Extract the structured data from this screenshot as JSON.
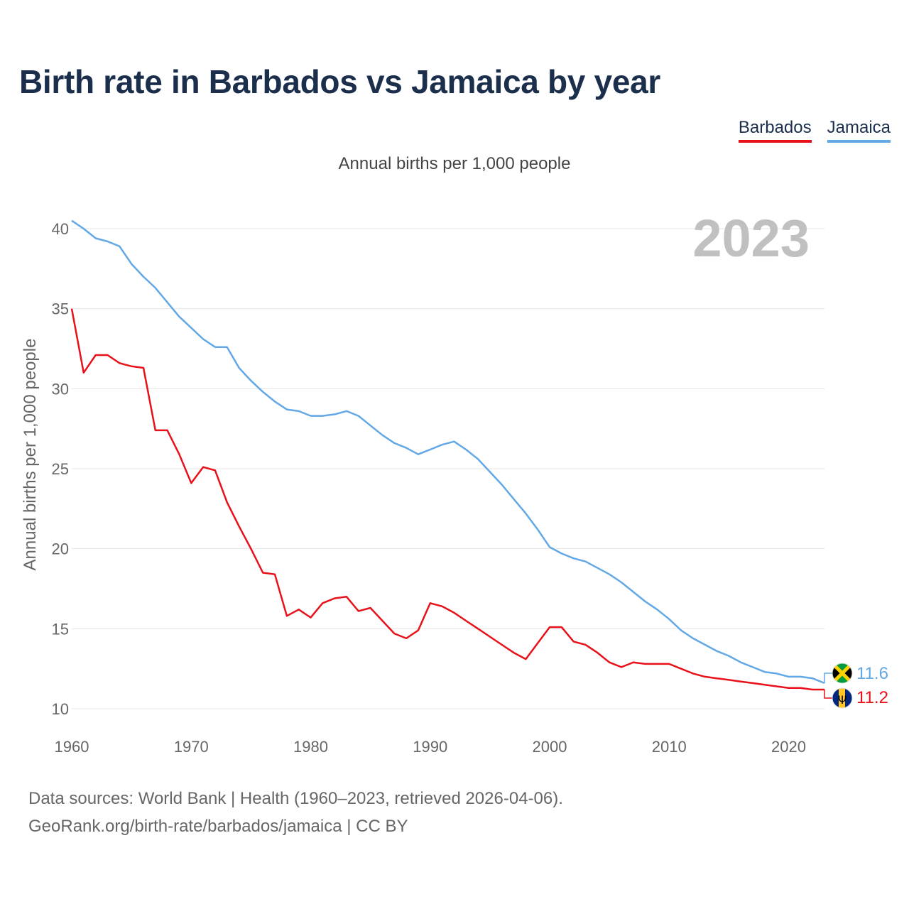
{
  "title": "Birth rate in Barbados vs Jamaica by year",
  "footer": {
    "line1": "Data sources: World Bank | Health (1960–2023, retrieved 2026-04-06).",
    "line2": "GeoRank.org/birth-rate/barbados/jamaica | CC BY"
  },
  "chart_data": {
    "type": "line",
    "title": "Birth rate in Barbados vs Jamaica by year",
    "subtitle": "Annual births per 1,000 people",
    "ylabel": "Annual births per 1,000 people",
    "xlabel": "",
    "xlim": [
      1960,
      2023
    ],
    "ylim": [
      10,
      41
    ],
    "yticks": [
      10,
      15,
      20,
      25,
      30,
      35,
      40
    ],
    "xticks": [
      1960,
      1970,
      1980,
      1990,
      2000,
      2010,
      2020
    ],
    "grid": true,
    "legend_position": "top-right",
    "year_label": "2023",
    "x": [
      1960,
      1961,
      1962,
      1963,
      1964,
      1965,
      1966,
      1967,
      1968,
      1969,
      1970,
      1971,
      1972,
      1973,
      1974,
      1975,
      1976,
      1977,
      1978,
      1979,
      1980,
      1981,
      1982,
      1983,
      1984,
      1985,
      1986,
      1987,
      1988,
      1989,
      1990,
      1991,
      1992,
      1993,
      1994,
      1995,
      1996,
      1997,
      1998,
      1999,
      2000,
      2001,
      2002,
      2003,
      2004,
      2005,
      2006,
      2007,
      2008,
      2009,
      2010,
      2011,
      2012,
      2013,
      2014,
      2015,
      2016,
      2017,
      2018,
      2019,
      2020,
      2021,
      2022,
      2023
    ],
    "series": [
      {
        "name": "Barbados",
        "color": "#e8111a",
        "end_label": "11.2",
        "values": [
          35.0,
          31.0,
          32.1,
          32.1,
          31.6,
          31.4,
          31.3,
          27.4,
          27.4,
          25.9,
          24.1,
          25.1,
          24.9,
          22.9,
          21.4,
          20.0,
          18.5,
          18.4,
          15.8,
          16.2,
          15.7,
          16.6,
          16.9,
          17.0,
          16.1,
          16.3,
          15.5,
          14.7,
          14.4,
          14.9,
          16.6,
          16.4,
          16.0,
          15.5,
          15.0,
          14.5,
          14.0,
          13.5,
          13.1,
          14.1,
          15.1,
          15.1,
          14.2,
          14.0,
          13.5,
          12.9,
          12.6,
          12.9,
          12.8,
          12.8,
          12.8,
          12.5,
          12.2,
          12.0,
          11.9,
          11.8,
          11.7,
          11.6,
          11.5,
          11.4,
          11.3,
          11.3,
          11.2,
          11.2
        ]
      },
      {
        "name": "Jamaica",
        "color": "#62a8e5",
        "end_label": "11.6",
        "values": [
          40.5,
          40.0,
          39.4,
          39.2,
          38.9,
          37.8,
          37.0,
          36.3,
          35.4,
          34.5,
          33.8,
          33.1,
          32.6,
          32.6,
          31.3,
          30.5,
          29.8,
          29.2,
          28.7,
          28.6,
          28.3,
          28.3,
          28.4,
          28.6,
          28.3,
          27.7,
          27.1,
          26.6,
          26.3,
          25.9,
          26.2,
          26.5,
          26.7,
          26.2,
          25.6,
          24.8,
          24.0,
          23.1,
          22.2,
          21.2,
          20.1,
          19.7,
          19.4,
          19.2,
          18.8,
          18.4,
          17.9,
          17.3,
          16.7,
          16.2,
          15.6,
          14.9,
          14.4,
          14.0,
          13.6,
          13.3,
          12.9,
          12.6,
          12.3,
          12.2,
          12.0,
          12.0,
          11.9,
          11.6
        ]
      }
    ]
  }
}
